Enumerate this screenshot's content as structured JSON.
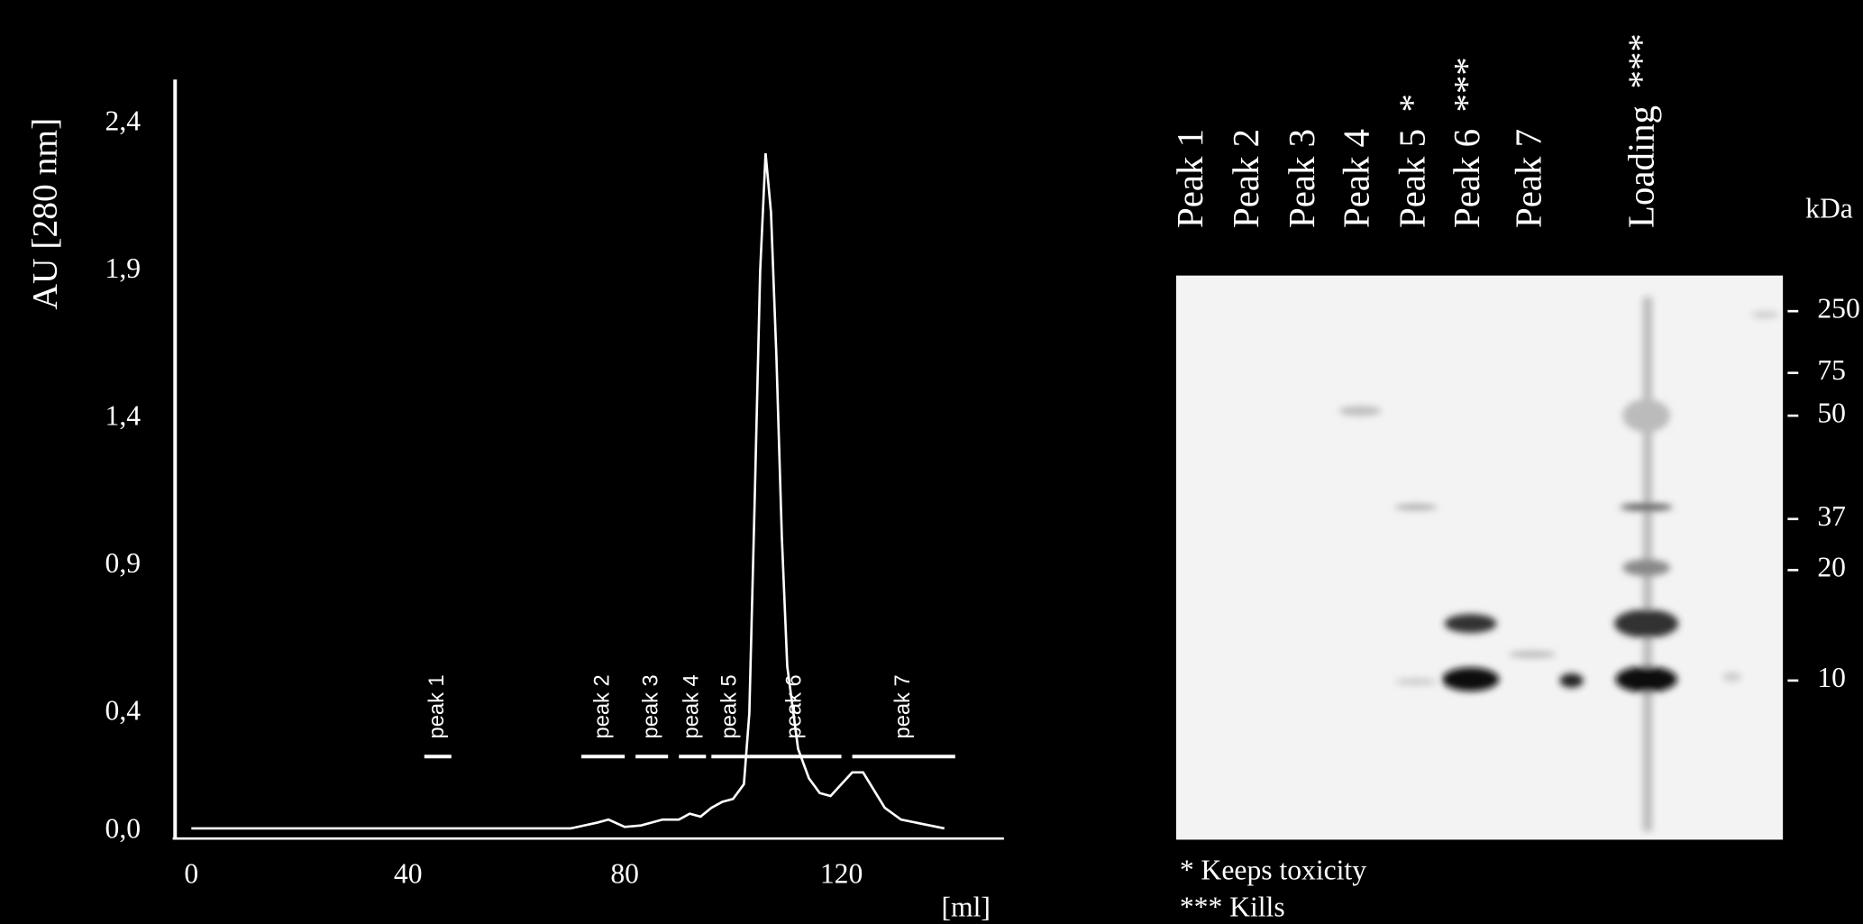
{
  "chart_data": {
    "type": "line",
    "y_label": "AU [280 nm]",
    "x_label": "[ml]",
    "color": "#ffffff",
    "x": [
      0,
      70,
      75,
      77,
      80,
      83,
      87,
      90,
      92,
      94,
      96,
      98,
      100,
      102,
      103,
      104,
      105,
      106,
      107,
      108,
      109,
      110,
      112,
      114,
      116,
      118,
      120,
      122,
      124,
      126,
      128,
      131,
      135,
      139
    ],
    "values": [
      0.01,
      0.01,
      0.03,
      0.04,
      0.015,
      0.02,
      0.04,
      0.04,
      0.06,
      0.05,
      0.08,
      0.1,
      0.11,
      0.16,
      0.4,
      1.13,
      1.9,
      2.3,
      2.1,
      1.61,
      1.0,
      0.56,
      0.28,
      0.18,
      0.13,
      0.12,
      0.16,
      0.2,
      0.2,
      0.14,
      0.08,
      0.04,
      0.025,
      0.01
    ],
    "xlim": [
      -3,
      150
    ],
    "xticks": [
      0,
      40,
      80,
      120
    ],
    "ylim": [
      0,
      2.55
    ],
    "yticks": [
      {
        "value": 0,
        "label": "0,0"
      },
      {
        "value": 0.4,
        "label": "0,4"
      },
      {
        "value": 0.9,
        "label": "0,9"
      },
      {
        "value": 1.4,
        "label": "1,4"
      },
      {
        "value": 1.9,
        "label": "1,9"
      },
      {
        "value": 2.4,
        "label": "2,4"
      }
    ],
    "grid": false,
    "fractions": [
      {
        "label": "peak 1",
        "start": 43,
        "end": 48
      },
      {
        "label": "peak 2",
        "start": 72,
        "end": 80
      },
      {
        "label": "peak 3",
        "start": 82,
        "end": 88
      },
      {
        "label": "peak 4",
        "start": 90,
        "end": 95
      },
      {
        "label": "peak 5",
        "start": 96,
        "end": 103
      },
      {
        "label": "peak 6",
        "start": 103,
        "end": 120
      },
      {
        "label": "peak 7",
        "start": 122,
        "end": 141
      }
    ]
  },
  "gel": {
    "lanes": [
      {
        "label": "Peak 1"
      },
      {
        "label": "Peak 2"
      },
      {
        "label": "Peak 3"
      },
      {
        "label": "Peak 4"
      },
      {
        "label": "Peak 5",
        "note": "*"
      },
      {
        "label": "Peak 6",
        "note": "***"
      },
      {
        "label": "Peak 7"
      },
      {
        "label": "Loading",
        "note": "***"
      }
    ],
    "unit": "kDa",
    "markers": [
      "250",
      "75",
      "50",
      "37",
      "20",
      "10"
    ],
    "footnotes": [
      "* Keeps toxicity",
      "*** Kills"
    ]
  }
}
